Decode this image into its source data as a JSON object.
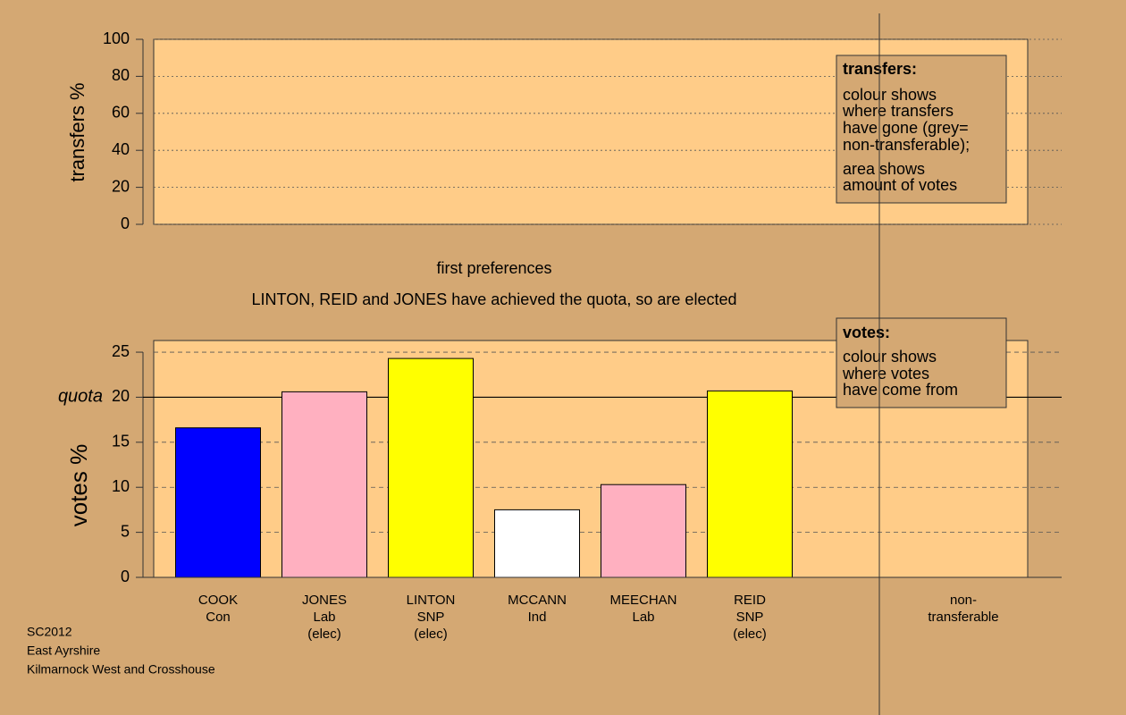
{
  "chart_data": [
    {
      "type": "bar",
      "ylabel": "transfers %",
      "ylim": [
        0,
        100
      ],
      "yticks": [
        0,
        20,
        40,
        60,
        80,
        100
      ],
      "grid": true,
      "legend": {
        "title": "transfers:",
        "lines": [
          "colour shows",
          "where transfers",
          "have gone (grey=",
          "non-transferable);",
          "area shows",
          "amount of votes"
        ]
      }
    },
    {
      "type": "bar",
      "title": "first preferences",
      "subtitle": "LINTON, REID and JONES have achieved the quota, so are elected",
      "ylabel": "votes %",
      "ylim": [
        0,
        25.6
      ],
      "yticks": [
        0,
        5,
        10,
        15,
        20,
        25
      ],
      "grid": true,
      "quota": {
        "value": 20,
        "label": "quota"
      },
      "categories": [
        [
          "COOK",
          "Con"
        ],
        [
          "JONES",
          "Lab",
          "(elec)"
        ],
        [
          "LINTON",
          "SNP",
          "(elec)"
        ],
        [
          "MCCANN",
          "Ind"
        ],
        [
          "MEECHAN",
          "Lab"
        ],
        [
          "REID",
          "SNP",
          "(elec)"
        ],
        [
          "non-",
          "transferable"
        ]
      ],
      "values": [
        16.6,
        20.6,
        24.3,
        7.5,
        10.3,
        20.7,
        null
      ],
      "colors": [
        "#0000ff",
        "#ffb0c0",
        "#ffff00",
        "#ffffff",
        "#ffb0c0",
        "#ffff00",
        null
      ],
      "legend": {
        "title": "votes:",
        "lines": [
          "colour shows",
          "where votes",
          "have come from"
        ]
      }
    }
  ],
  "footer": [
    "SC2012",
    "East Ayrshire",
    "Kilmarnock West and Crosshouse"
  ]
}
